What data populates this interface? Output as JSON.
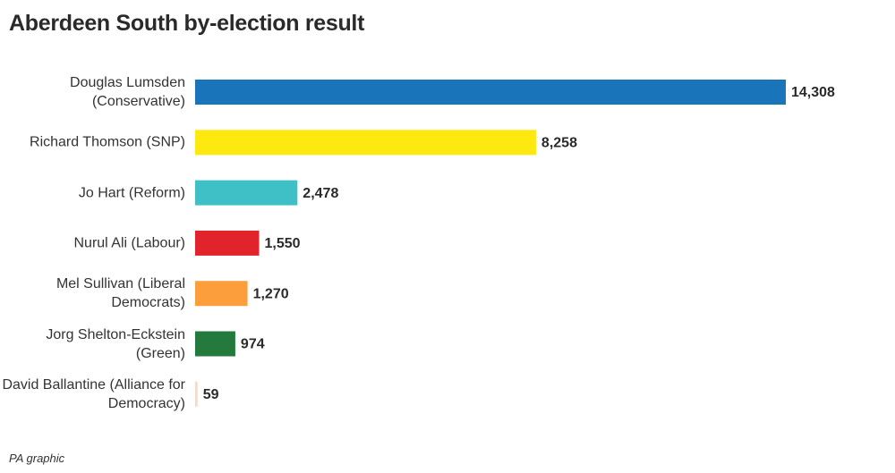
{
  "chart_data": {
    "type": "hbar",
    "title": "Aberdeen South by-election result",
    "categories": [
      "Douglas Lumsden (Conservative)",
      "Richard Thomson (SNP)",
      "Jo Hart (Reform)",
      "Nurul Ali (Labour)",
      "Mel Sullivan (Liberal Democrats)",
      "Jorg Shelton-Eckstein (Green)",
      "David Ballantine (Alliance for Democracy)"
    ],
    "values": [
      14308,
      8258,
      2478,
      1550,
      1270,
      974,
      59
    ],
    "value_labels": [
      "14,308",
      "8,258",
      "2,478",
      "1,550",
      "1,270",
      "974",
      "59"
    ],
    "colors": [
      "#1a74b9",
      "#fde80f",
      "#3fc0c6",
      "#e1242c",
      "#fd9e3c",
      "#247a3d",
      "#f7d9c8"
    ],
    "source": "PA graphic"
  }
}
